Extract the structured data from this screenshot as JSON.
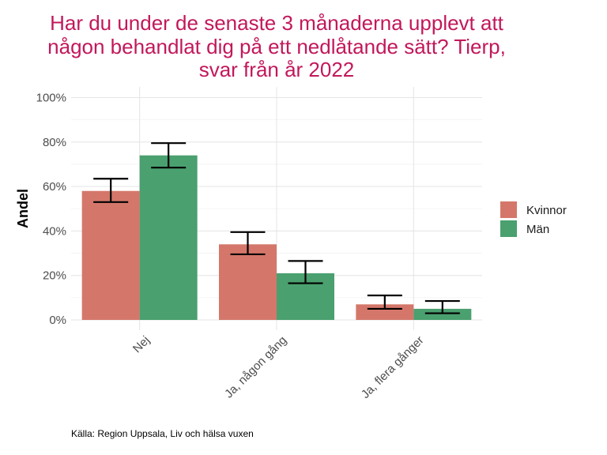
{
  "chart_data": {
    "type": "bar",
    "title_lines": [
      "Har du under de senaste 3 månaderna upplevt att",
      "någon behandlat dig på ett nedlåtande sätt? Tierp,",
      "svar från år 2022"
    ],
    "xlabel": "",
    "ylabel": "Andel",
    "categories": [
      "Nej",
      "Ja, någon gång",
      "Ja, flera gånger"
    ],
    "series": [
      {
        "name": "Kvinnor",
        "color": "#d4776a",
        "values": [
          58,
          34,
          7
        ],
        "ci_low": [
          53,
          29.5,
          5
        ],
        "ci_high": [
          63.5,
          39.5,
          11
        ]
      },
      {
        "name": "Män",
        "color": "#4aa06f",
        "values": [
          74,
          21,
          5
        ],
        "ci_low": [
          68.5,
          16.5,
          3
        ],
        "ci_high": [
          79.5,
          26.5,
          8.5
        ]
      }
    ],
    "ylim": [
      0,
      100
    ],
    "y_ticks": [
      "0%",
      "20%",
      "40%",
      "60%",
      "80%",
      "100%"
    ],
    "grid": true,
    "legend_position": "right",
    "caption": "Källa: Region Uppsala, Liv och hälsa vuxen"
  }
}
